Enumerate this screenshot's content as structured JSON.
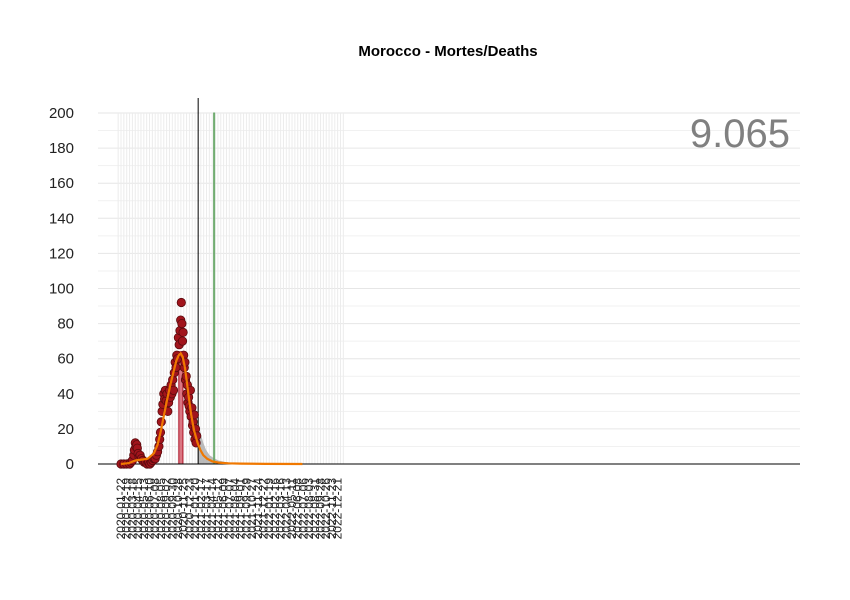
{
  "chart_data": {
    "type": "scatter",
    "title": "Morocco - Mortes/Deaths",
    "xlabel": "",
    "ylabel": "",
    "ylim": [
      0,
      200
    ],
    "xlim": [
      "2020-01-01",
      "2023-01-31"
    ],
    "y_ticks": [
      0,
      20,
      40,
      60,
      80,
      100,
      120,
      140,
      160,
      180,
      200
    ],
    "x_ticks": [
      "2020-01-22",
      "2020-02-19",
      "2020-03-18",
      "2020-04-15",
      "2020-05-13",
      "2020-06-10",
      "2020-07-08",
      "2020-08-05",
      "2020-09-02",
      "2020-09-30",
      "2020-10-28",
      "2020-11-25",
      "2020-12-23",
      "2021-01-20",
      "2021-02-17",
      "2021-03-17",
      "2021-04-14",
      "2021-05-12",
      "2021-06-09",
      "2021-07-07",
      "2021-08-04",
      "2021-09-01",
      "2021-09-29",
      "2021-10-27",
      "2021-11-24",
      "2021-12-22",
      "2022-01-19",
      "2022-02-16",
      "2022-03-16",
      "2022-04-13",
      "2022-05-11",
      "2022-06-08",
      "2022-07-06",
      "2022-08-03",
      "2022-08-31",
      "2022-09-28",
      "2022-10-26",
      "2022-11-23",
      "2022-12-21"
    ],
    "grid": true,
    "total_label": "9.065",
    "today_line": "2021-02-04",
    "peak_band": {
      "from": "2020-11-01",
      "to": "2020-11-21",
      "value": 64
    },
    "marker_band": {
      "from": "2021-04-21",
      "to": "2021-04-26",
      "value": 200
    },
    "series": [
      {
        "role": "observed daily deaths",
        "points": [
          [
            "2020-01-22",
            0
          ],
          [
            "2020-02-05",
            0
          ],
          [
            "2020-02-19",
            0
          ],
          [
            "2020-03-04",
            0
          ],
          [
            "2020-03-11",
            1
          ],
          [
            "2020-03-18",
            2
          ],
          [
            "2020-03-25",
            5
          ],
          [
            "2020-03-28",
            8
          ],
          [
            "2020-04-01",
            12
          ],
          [
            "2020-04-04",
            10
          ],
          [
            "2020-04-08",
            11
          ],
          [
            "2020-04-11",
            9
          ],
          [
            "2020-04-15",
            6
          ],
          [
            "2020-04-20",
            4
          ],
          [
            "2020-04-25",
            5
          ],
          [
            "2020-05-01",
            3
          ],
          [
            "2020-05-08",
            2
          ],
          [
            "2020-05-15",
            1
          ],
          [
            "2020-05-22",
            1
          ],
          [
            "2020-05-29",
            0
          ],
          [
            "2020-06-05",
            1
          ],
          [
            "2020-06-12",
            0
          ],
          [
            "2020-06-19",
            1
          ],
          [
            "2020-06-26",
            2
          ],
          [
            "2020-07-02",
            3
          ],
          [
            "2020-07-08",
            3
          ],
          [
            "2020-07-14",
            5
          ],
          [
            "2020-07-20",
            7
          ],
          [
            "2020-07-26",
            10
          ],
          [
            "2020-07-30",
            14
          ],
          [
            "2020-08-03",
            18
          ],
          [
            "2020-08-07",
            24
          ],
          [
            "2020-08-11",
            30
          ],
          [
            "2020-08-15",
            34
          ],
          [
            "2020-08-19",
            40
          ],
          [
            "2020-08-23",
            37
          ],
          [
            "2020-08-27",
            42
          ],
          [
            "2020-08-31",
            36
          ],
          [
            "2020-09-04",
            40
          ],
          [
            "2020-09-08",
            30
          ],
          [
            "2020-09-12",
            35
          ],
          [
            "2020-09-16",
            42
          ],
          [
            "2020-09-20",
            38
          ],
          [
            "2020-09-24",
            45
          ],
          [
            "2020-09-28",
            40
          ],
          [
            "2020-10-02",
            48
          ],
          [
            "2020-10-06",
            42
          ],
          [
            "2020-10-10",
            52
          ],
          [
            "2020-10-14",
            58
          ],
          [
            "2020-10-18",
            55
          ],
          [
            "2020-10-22",
            62
          ],
          [
            "2020-10-26",
            60
          ],
          [
            "2020-10-30",
            72
          ],
          [
            "2020-11-03",
            68
          ],
          [
            "2020-11-07",
            76
          ],
          [
            "2020-11-10",
            82
          ],
          [
            "2020-11-13",
            92
          ],
          [
            "2020-11-16",
            80
          ],
          [
            "2020-11-19",
            70
          ],
          [
            "2020-11-22",
            75
          ],
          [
            "2020-11-25",
            62
          ],
          [
            "2020-11-28",
            55
          ],
          [
            "2020-12-01",
            58
          ],
          [
            "2020-12-04",
            48
          ],
          [
            "2020-12-07",
            50
          ],
          [
            "2020-12-10",
            40
          ],
          [
            "2020-12-13",
            45
          ],
          [
            "2020-12-16",
            35
          ],
          [
            "2020-12-19",
            38
          ],
          [
            "2020-12-22",
            33
          ],
          [
            "2020-12-25",
            30
          ],
          [
            "2020-12-28",
            42
          ],
          [
            "2021-01-01",
            27
          ],
          [
            "2021-01-04",
            32
          ],
          [
            "2021-01-07",
            22
          ],
          [
            "2021-01-10",
            24
          ],
          [
            "2021-01-13",
            18
          ],
          [
            "2021-01-16",
            28
          ],
          [
            "2021-01-19",
            14
          ],
          [
            "2021-01-22",
            20
          ],
          [
            "2021-01-25",
            12
          ],
          [
            "2021-01-28",
            16
          ]
        ]
      },
      {
        "role": "fitted curve",
        "color": "#f07800",
        "points": [
          [
            "2020-01-22",
            0
          ],
          [
            "2020-03-01",
            0.5
          ],
          [
            "2020-04-01",
            2
          ],
          [
            "2020-05-01",
            2.5
          ],
          [
            "2020-06-01",
            3
          ],
          [
            "2020-07-01",
            6
          ],
          [
            "2020-07-20",
            11
          ],
          [
            "2020-08-05",
            19
          ],
          [
            "2020-08-20",
            28
          ],
          [
            "2020-09-05",
            37
          ],
          [
            "2020-09-20",
            45
          ],
          [
            "2020-10-05",
            52
          ],
          [
            "2020-10-20",
            59
          ],
          [
            "2020-11-01",
            62
          ],
          [
            "2020-11-10",
            63
          ],
          [
            "2020-11-20",
            61
          ],
          [
            "2020-12-01",
            55
          ],
          [
            "2020-12-10",
            47
          ],
          [
            "2020-12-20",
            38
          ],
          [
            "2021-01-01",
            28
          ],
          [
            "2021-01-15",
            19
          ],
          [
            "2021-02-01",
            12
          ],
          [
            "2021-02-15",
            8
          ],
          [
            "2021-03-01",
            5
          ],
          [
            "2021-03-20",
            3
          ],
          [
            "2021-04-15",
            1.5
          ],
          [
            "2021-05-15",
            0.8
          ],
          [
            "2021-07-01",
            0.4
          ],
          [
            "2021-09-01",
            0.2
          ],
          [
            "2022-01-01",
            0.05
          ],
          [
            "2022-07-01",
            0
          ]
        ]
      },
      {
        "role": "projection band",
        "color": "#b3b3b3",
        "points": [
          [
            "2021-02-01",
            25
          ],
          [
            "2021-02-15",
            18
          ],
          [
            "2021-03-01",
            12
          ],
          [
            "2021-03-15",
            8
          ],
          [
            "2021-04-01",
            5
          ],
          [
            "2021-04-20",
            3.5
          ],
          [
            "2021-05-15",
            2
          ],
          [
            "2021-06-15",
            1.2
          ],
          [
            "2021-07-15",
            0.8
          ],
          [
            "2021-09-01",
            0.4
          ],
          [
            "2021-12-01",
            0.2
          ],
          [
            "2022-03-01",
            0.1
          ],
          [
            "2022-07-01",
            0
          ]
        ]
      }
    ]
  }
}
